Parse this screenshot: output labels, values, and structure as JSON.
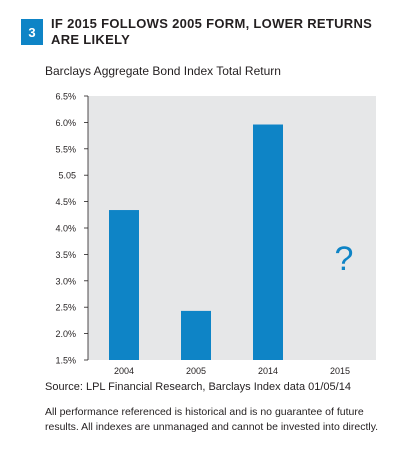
{
  "figure": {
    "number": "3",
    "title": "IF 2015 FOLLOWS 2005 FORM, LOWER RETURNS ARE LIKELY"
  },
  "chart_data": {
    "type": "bar",
    "subtitle": "Barclays Aggregate Bond Index Total Return",
    "categories": [
      "2004",
      "2005",
      "2014",
      "2015"
    ],
    "values": [
      4.34,
      2.43,
      5.96,
      null
    ],
    "unknown_marker": "?",
    "y_ticks": [
      "6.5%",
      "6.0%",
      "5.5%",
      "5.05",
      "4.5%",
      "4.0%",
      "3.5%",
      "3.0%",
      "2.5%",
      "2.0%",
      "1.5%"
    ],
    "ylim": [
      1.5,
      6.5
    ],
    "grid": false,
    "colors": {
      "bar": "#0e84c6",
      "plot_background": "#e6e7e8",
      "marker": "#0e84c6"
    }
  },
  "notes": {
    "source": "Source: LPL Financial Research, Barclays Index data 01/05/14",
    "disclaimer": "All performance referenced is historical and is no guarantee of future results. All indexes are unmanaged and cannot be invested into directly."
  }
}
